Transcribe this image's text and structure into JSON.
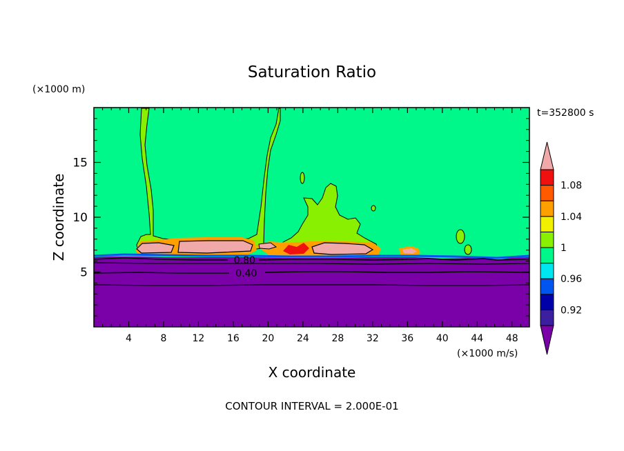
{
  "chart_data": {
    "type": "heatmap",
    "title": "Saturation Ratio",
    "xlabel": "X coordinate",
    "ylabel": "Z coordinate",
    "x_unit": "(×1000 m/s)",
    "y_unit": "(×1000 m)",
    "time_label": "t=352800 s",
    "footer": "CONTOUR INTERVAL = 2.000E-01",
    "xlim": [
      0,
      50
    ],
    "ylim": [
      0,
      20
    ],
    "x_ticks": [
      "4",
      "8",
      "12",
      "16",
      "20",
      "24",
      "28",
      "32",
      "36",
      "40",
      "44",
      "48"
    ],
    "y_ticks": [
      "5",
      "10",
      "15"
    ],
    "x_tick_values": [
      4,
      8,
      12,
      16,
      20,
      24,
      28,
      32,
      36,
      40,
      44,
      48
    ],
    "y_tick_values": [
      5,
      10,
      15
    ],
    "contour_labels": [
      {
        "text": "0.80",
        "x": 17.3,
        "y": 6.1
      },
      {
        "text": "0.40",
        "x": 17.5,
        "y": 4.9
      }
    ],
    "colorbar": {
      "levels": [
        0.9,
        0.92,
        0.94,
        0.96,
        0.98,
        1.0,
        1.02,
        1.04,
        1.06,
        1.08,
        1.1
      ],
      "tick_labels": [
        "0.92",
        "0.96",
        "1",
        "1.04",
        "1.08"
      ],
      "tick_values": [
        0.92,
        0.96,
        1.0,
        1.04,
        1.08
      ],
      "colors": [
        "#3b1f9e",
        "#0000a8",
        "#0054f0",
        "#00e6f0",
        "#00f88a",
        "#88f000",
        "#f0f000",
        "#ffa000",
        "#ff5a00",
        "#f01010"
      ],
      "under_color": "#7a00a8",
      "over_color": "#f0a8a8"
    },
    "regions": [
      {
        "name": "background",
        "color": "#00f88a"
      },
      {
        "name": "lower-layer",
        "color": "#7a00a8",
        "z_top": 6.3
      },
      {
        "name": "plume-1",
        "color": "#88f000",
        "x": [
          5.5,
          20.2
        ],
        "z": [
          6.5,
          20
        ]
      },
      {
        "name": "plume-2",
        "color": "#88f000",
        "x": [
          22.5,
          30.5
        ],
        "z": [
          7.0,
          12.9
        ]
      },
      {
        "name": "cloud-1",
        "color": "#f0a8a8",
        "x": [
          9.6,
          18.7
        ],
        "z": [
          6.6,
          7.7
        ]
      },
      {
        "name": "cloud-2",
        "color": "#f0a8a8",
        "x": [
          4.9,
          9.4
        ],
        "z": [
          6.6,
          7.3
        ]
      },
      {
        "name": "cloud-3",
        "color": "#f0a8a8",
        "x": [
          25.0,
          31.5
        ],
        "z": [
          6.5,
          7.3
        ]
      },
      {
        "name": "cloud-4",
        "color": "#f0a8a8",
        "x": [
          34.8,
          37.2
        ],
        "z": [
          6.6,
          7.2
        ]
      }
    ]
  }
}
